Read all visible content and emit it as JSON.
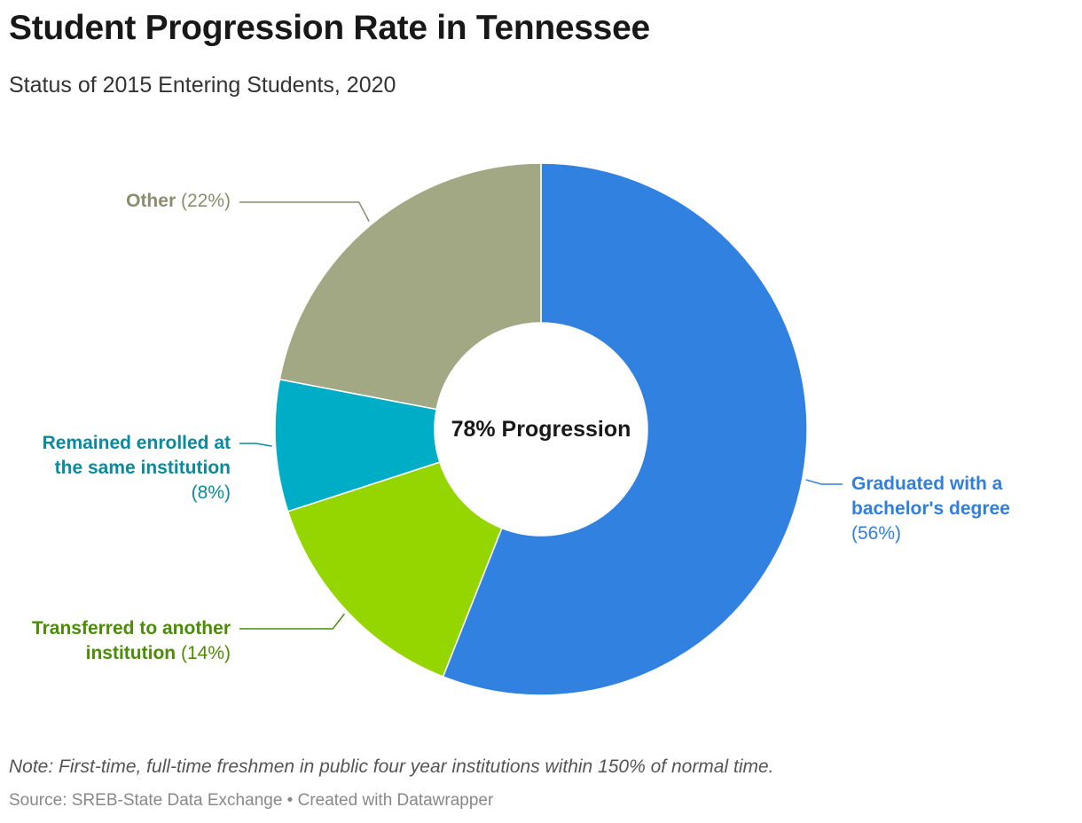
{
  "header": {
    "title": "Student Progression Rate in Tennessee",
    "subtitle": "Status of 2015 Entering Students, 2020"
  },
  "chart_data": {
    "type": "pie",
    "title": "Student Progression Rate in Tennessee",
    "subtitle": "Status of 2015 Entering Students, 2020",
    "center_label": "78% Progression",
    "slices": [
      {
        "name": "Graduated with a bachelor's degree",
        "value": 56,
        "pct_label": "(56%)",
        "color": "#3181e0"
      },
      {
        "name": "Transferred to another institution",
        "value": 14,
        "pct_label": "(14%)",
        "color": "#95d600"
      },
      {
        "name": "Remained enrolled at the same institution",
        "value": 8,
        "pct_label": "(8%)",
        "color": "#00adc6"
      },
      {
        "name": "Other",
        "value": 22,
        "pct_label": "(22%)",
        "color": "#a2a884"
      }
    ],
    "label_colors": {
      "Graduated with a bachelor's degree": "#2f7fe0",
      "Transferred to another institution": "#4a8d05",
      "Remained enrolled at the same institution": "#0a8a9e",
      "Other": "#8a8e6c"
    }
  },
  "labels": {
    "graduated_line1": "Graduated with a",
    "graduated_line2": "bachelor's degree",
    "graduated_pct": "(56%)",
    "transferred_line1": "Transferred to another",
    "transferred_line2": "institution",
    "transferred_pct": "(14%)",
    "remained_line1": "Remained enrolled at",
    "remained_line2": "the same institution",
    "remained_pct": "(8%)",
    "other_name": "Other",
    "other_pct": "(22%)"
  },
  "footer": {
    "note": "Note: First-time, full-time freshmen in public four year institutions within 150% of normal time.",
    "source": "Source: SREB-State Data Exchange • Created with Datawrapper"
  }
}
